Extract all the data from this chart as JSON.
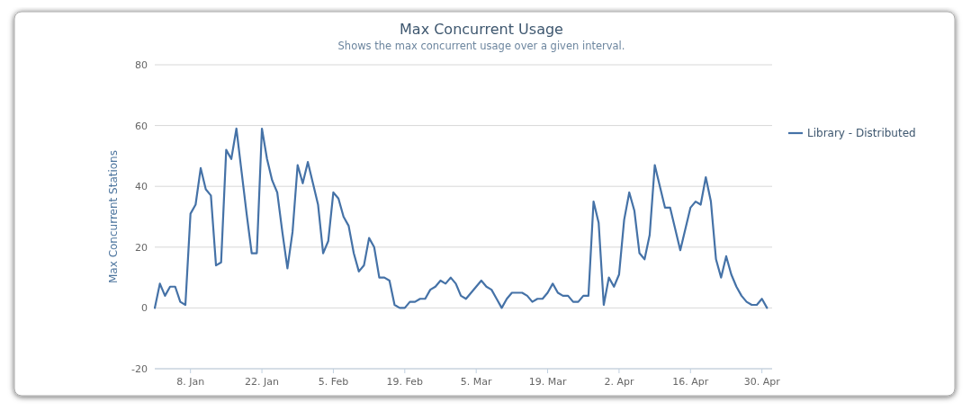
{
  "chart_data": {
    "type": "line",
    "title": "Max Concurrent Usage",
    "subtitle": "Shows the max concurrent usage over a given interval.",
    "ylabel": "Max Concurrent Stations",
    "x": [
      "--01-01",
      "--01-02",
      "--01-03",
      "--01-04",
      "--01-05",
      "--01-06",
      "--01-07",
      "--01-08",
      "--01-09",
      "--01-10",
      "--01-11",
      "--01-12",
      "--01-13",
      "--01-14",
      "--01-15",
      "--01-16",
      "--01-17",
      "--01-18",
      "--01-19",
      "--01-20",
      "--01-21",
      "--01-22",
      "--01-23",
      "--01-24",
      "--01-25",
      "--01-26",
      "--01-27",
      "--01-28",
      "--01-29",
      "--01-30",
      "--01-31",
      "--02-01",
      "--02-02",
      "--02-03",
      "--02-04",
      "--02-05",
      "--02-06",
      "--02-07",
      "--02-08",
      "--02-09",
      "--02-10",
      "--02-11",
      "--02-12",
      "--02-13",
      "--02-14",
      "--02-15",
      "--02-16",
      "--02-17",
      "--02-18",
      "--02-19",
      "--02-20",
      "--02-21",
      "--02-22",
      "--02-23",
      "--02-24",
      "--02-25",
      "--02-26",
      "--02-27",
      "--02-28",
      "--03-01",
      "--03-02",
      "--03-03",
      "--03-04",
      "--03-05",
      "--03-06",
      "--03-07",
      "--03-08",
      "--03-09",
      "--03-10",
      "--03-11",
      "--03-12",
      "--03-13",
      "--03-14",
      "--03-15",
      "--03-16",
      "--03-17",
      "--03-18",
      "--03-19",
      "--03-20",
      "--03-21",
      "--03-22",
      "--03-23",
      "--03-24",
      "--03-25",
      "--03-26",
      "--03-27",
      "--03-28",
      "--03-29",
      "--03-30",
      "--03-31",
      "--04-01",
      "--04-02",
      "--04-03",
      "--04-04",
      "--04-05",
      "--04-06",
      "--04-07",
      "--04-08",
      "--04-09",
      "--04-10",
      "--04-11",
      "--04-12",
      "--04-13",
      "--04-14",
      "--04-15",
      "--04-16",
      "--04-17",
      "--04-18",
      "--04-19",
      "--04-20",
      "--04-21",
      "--04-22",
      "--04-23",
      "--04-24",
      "--04-25",
      "--04-26",
      "--04-27",
      "--04-28",
      "--04-29",
      "--04-30",
      "--05-01"
    ],
    "series": [
      {
        "name": "Library - Distributed",
        "color": "#4572a7",
        "values": [
          0,
          8,
          4,
          7,
          7,
          2,
          1,
          31,
          34,
          46,
          39,
          37,
          14,
          15,
          52,
          49,
          59,
          45,
          31,
          18,
          18,
          59,
          49,
          42,
          38,
          25,
          13,
          25,
          47,
          41,
          48,
          41,
          34,
          18,
          22,
          38,
          36,
          30,
          27,
          18,
          12,
          14,
          23,
          20,
          10,
          10,
          9,
          1,
          0,
          0,
          2,
          2,
          3,
          3,
          6,
          7,
          9,
          8,
          10,
          8,
          4,
          3,
          5,
          7,
          9,
          7,
          6,
          3,
          0,
          3,
          5,
          5,
          5,
          4,
          2,
          3,
          3,
          5,
          8,
          5,
          4,
          4,
          2,
          2,
          4,
          4,
          35,
          28,
          1,
          10,
          7,
          11,
          29,
          38,
          32,
          18,
          16,
          24,
          47,
          40,
          33,
          33,
          26,
          19,
          26,
          33,
          35,
          34,
          43,
          35,
          16,
          10,
          17,
          11,
          7,
          4,
          2,
          1,
          1,
          3,
          0
        ]
      }
    ],
    "xlim": [
      "--01-01",
      "--05-02"
    ],
    "xticks": [
      {
        "value": "--01-08",
        "label": "8. Jan"
      },
      {
        "value": "--01-22",
        "label": "22. Jan"
      },
      {
        "value": "--02-05",
        "label": "5. Feb"
      },
      {
        "value": "--02-19",
        "label": "19. Feb"
      },
      {
        "value": "--03-05",
        "label": "5. Mar"
      },
      {
        "value": "--03-19",
        "label": "19. Mar"
      },
      {
        "value": "--04-02",
        "label": "2. Apr"
      },
      {
        "value": "--04-16",
        "label": "16. Apr"
      },
      {
        "value": "--04-30",
        "label": "30. Apr"
      }
    ],
    "ylim": [
      -20,
      80
    ],
    "yticks": [
      -20,
      0,
      20,
      40,
      60,
      80
    ],
    "grid": "y",
    "legend": "right",
    "marker": "none",
    "line_style": "solid"
  }
}
